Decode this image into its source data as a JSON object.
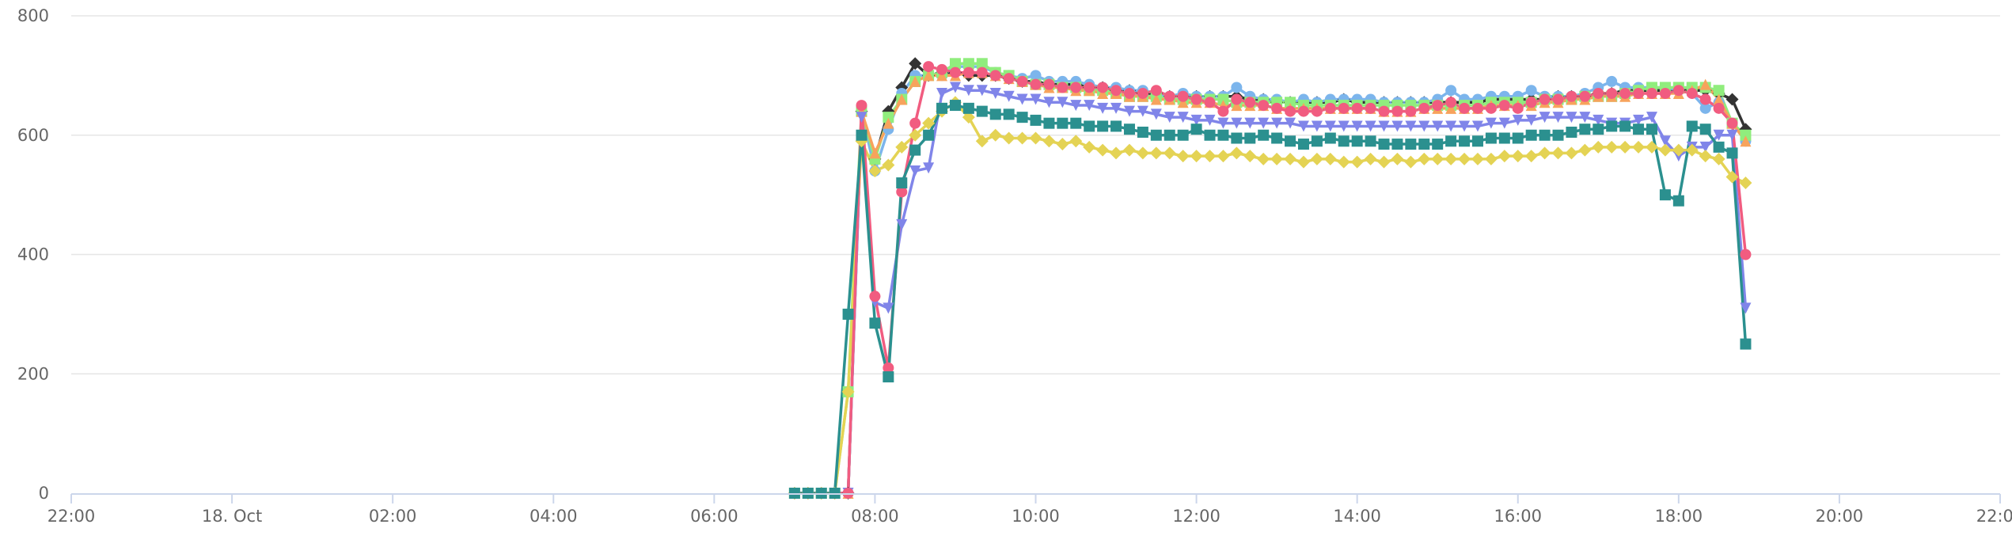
{
  "chart_data": {
    "type": "line",
    "title": "",
    "xlabel": "",
    "ylabel": "",
    "ylim": [
      0,
      800
    ],
    "xlim": [
      "2023-10-17 22:00",
      "2023-10-18 22:00"
    ],
    "grid": true,
    "legend": "none",
    "y_ticks": [
      "0",
      "200",
      "400",
      "600",
      "800"
    ],
    "x_ticks": [
      "22:00",
      "18. Oct",
      "02:00",
      "04:00",
      "06:00",
      "08:00",
      "10:00",
      "12:00",
      "14:00",
      "16:00",
      "18:00",
      "20:00",
      "22:00"
    ],
    "x_tick_times": [
      "2023-10-17 22:00",
      "2023-10-18 00:00",
      "2023-10-18 02:00",
      "2023-10-18 04:00",
      "2023-10-18 06:00",
      "2023-10-18 08:00",
      "2023-10-18 10:00",
      "2023-10-18 12:00",
      "2023-10-18 14:00",
      "2023-10-18 16:00",
      "2023-10-18 18:00",
      "2023-10-18 20:00",
      "2023-10-18 22:00"
    ],
    "x": [
      "2023-10-18 07:00",
      "2023-10-18 07:10",
      "2023-10-18 07:20",
      "2023-10-18 07:30",
      "2023-10-18 07:40",
      "2023-10-18 07:50",
      "2023-10-18 08:00",
      "2023-10-18 08:10",
      "2023-10-18 08:20",
      "2023-10-18 08:30",
      "2023-10-18 08:40",
      "2023-10-18 08:50",
      "2023-10-18 09:00",
      "2023-10-18 09:10",
      "2023-10-18 09:20",
      "2023-10-18 09:30",
      "2023-10-18 09:40",
      "2023-10-18 09:50",
      "2023-10-18 10:00",
      "2023-10-18 10:10",
      "2023-10-18 10:20",
      "2023-10-18 10:30",
      "2023-10-18 10:40",
      "2023-10-18 10:50",
      "2023-10-18 11:00",
      "2023-10-18 11:10",
      "2023-10-18 11:20",
      "2023-10-18 11:30",
      "2023-10-18 11:40",
      "2023-10-18 11:50",
      "2023-10-18 12:00",
      "2023-10-18 12:10",
      "2023-10-18 12:20",
      "2023-10-18 12:30",
      "2023-10-18 12:40",
      "2023-10-18 12:50",
      "2023-10-18 13:00",
      "2023-10-18 13:10",
      "2023-10-18 13:20",
      "2023-10-18 13:30",
      "2023-10-18 13:40",
      "2023-10-18 13:50",
      "2023-10-18 14:00",
      "2023-10-18 14:10",
      "2023-10-18 14:20",
      "2023-10-18 14:30",
      "2023-10-18 14:40",
      "2023-10-18 14:50",
      "2023-10-18 15:00",
      "2023-10-18 15:10",
      "2023-10-18 15:20",
      "2023-10-18 15:30",
      "2023-10-18 15:40",
      "2023-10-18 15:50",
      "2023-10-18 16:00",
      "2023-10-18 16:10",
      "2023-10-18 16:20",
      "2023-10-18 16:30",
      "2023-10-18 16:40",
      "2023-10-18 16:50",
      "2023-10-18 17:00",
      "2023-10-18 17:10",
      "2023-10-18 17:20",
      "2023-10-18 17:30",
      "2023-10-18 17:40",
      "2023-10-18 17:50",
      "2023-10-18 18:00",
      "2023-10-18 18:10",
      "2023-10-18 18:20",
      "2023-10-18 18:30",
      "2023-10-18 18:40",
      "2023-10-18 18:50"
    ],
    "series": [
      {
        "color": "#333333",
        "marker": "diamond",
        "values": [
          0,
          0,
          0,
          0,
          0,
          640,
          560,
          640,
          680,
          720,
          700,
          705,
          705,
          700,
          700,
          700,
          695,
          690,
          690,
          685,
          685,
          685,
          680,
          680,
          675,
          675,
          670,
          670,
          665,
          665,
          665,
          665,
          665,
          665,
          660,
          660,
          655,
          655,
          655,
          655,
          655,
          660,
          655,
          655,
          655,
          655,
          655,
          655,
          655,
          655,
          655,
          655,
          660,
          660,
          660,
          660,
          660,
          665,
          665,
          665,
          670,
          670,
          675,
          675,
          675,
          675,
          675,
          675,
          675,
          670,
          660,
          610
        ]
      },
      {
        "color": "#7cb5ec",
        "marker": "circle",
        "values": [
          0,
          0,
          0,
          0,
          0,
          640,
          540,
          610,
          670,
          700,
          700,
          700,
          715,
          715,
          715,
          705,
          700,
          695,
          700,
          690,
          690,
          690,
          685,
          680,
          680,
          675,
          675,
          670,
          665,
          670,
          665,
          665,
          665,
          680,
          665,
          660,
          660,
          655,
          660,
          655,
          660,
          660,
          660,
          660,
          655,
          655,
          655,
          655,
          660,
          675,
          660,
          660,
          665,
          665,
          665,
          675,
          665,
          665,
          665,
          670,
          680,
          690,
          680,
          680,
          680,
          680,
          675,
          670,
          645,
          655,
          620,
          590
        ]
      },
      {
        "color": "#90ed7d",
        "marker": "square",
        "values": [
          0,
          0,
          0,
          0,
          170,
          640,
          560,
          630,
          660,
          690,
          700,
          705,
          720,
          720,
          720,
          705,
          700,
          690,
          685,
          685,
          680,
          680,
          675,
          675,
          670,
          665,
          665,
          665,
          660,
          660,
          660,
          660,
          660,
          655,
          655,
          655,
          655,
          655,
          650,
          650,
          650,
          650,
          650,
          650,
          650,
          650,
          650,
          650,
          650,
          650,
          650,
          650,
          655,
          655,
          655,
          655,
          660,
          660,
          660,
          665,
          665,
          665,
          670,
          675,
          680,
          680,
          680,
          680,
          680,
          675,
          620,
          600
        ]
      },
      {
        "color": "#f7a35c",
        "marker": "triangle",
        "values": [
          0,
          0,
          0,
          0,
          0,
          640,
          570,
          620,
          660,
          690,
          700,
          700,
          700,
          705,
          705,
          700,
          695,
          690,
          685,
          680,
          680,
          675,
          675,
          670,
          670,
          665,
          665,
          660,
          660,
          655,
          655,
          655,
          650,
          650,
          650,
          650,
          645,
          645,
          645,
          645,
          645,
          645,
          645,
          645,
          640,
          640,
          640,
          645,
          645,
          645,
          645,
          645,
          650,
          650,
          650,
          650,
          655,
          655,
          660,
          660,
          665,
          665,
          665,
          670,
          670,
          670,
          670,
          675,
          685,
          660,
          620,
          590
        ]
      },
      {
        "color": "#8085e9",
        "marker": "triangle-down",
        "values": [
          0,
          0,
          0,
          0,
          0,
          630,
          320,
          310,
          450,
          540,
          545,
          670,
          680,
          675,
          675,
          670,
          665,
          660,
          660,
          655,
          655,
          650,
          650,
          645,
          645,
          640,
          640,
          635,
          630,
          630,
          625,
          625,
          620,
          620,
          620,
          620,
          620,
          620,
          615,
          615,
          615,
          615,
          615,
          615,
          615,
          615,
          615,
          615,
          615,
          615,
          615,
          615,
          620,
          620,
          625,
          625,
          630,
          630,
          630,
          630,
          625,
          620,
          620,
          625,
          630,
          590,
          565,
          580,
          580,
          600,
          600,
          310
        ]
      },
      {
        "color": "#e4d354",
        "marker": "diamond",
        "values": [
          0,
          0,
          0,
          0,
          170,
          590,
          540,
          550,
          580,
          600,
          620,
          640,
          655,
          630,
          590,
          600,
          595,
          595,
          595,
          590,
          585,
          590,
          580,
          575,
          570,
          575,
          570,
          570,
          570,
          565,
          565,
          565,
          565,
          570,
          565,
          560,
          560,
          560,
          555,
          560,
          560,
          555,
          555,
          560,
          555,
          560,
          555,
          560,
          560,
          560,
          560,
          560,
          560,
          565,
          565,
          565,
          570,
          570,
          570,
          575,
          580,
          580,
          580,
          580,
          580,
          575,
          575,
          575,
          565,
          560,
          530,
          520
        ]
      },
      {
        "color": "#f15c80",
        "marker": "circle",
        "values": [
          0,
          0,
          0,
          0,
          0,
          650,
          330,
          210,
          505,
          620,
          715,
          710,
          705,
          705,
          705,
          700,
          695,
          690,
          685,
          685,
          680,
          680,
          680,
          680,
          675,
          670,
          670,
          675,
          665,
          665,
          660,
          655,
          640,
          660,
          655,
          650,
          645,
          640,
          640,
          640,
          645,
          645,
          645,
          645,
          640,
          640,
          640,
          645,
          650,
          655,
          645,
          645,
          645,
          650,
          645,
          655,
          660,
          660,
          665,
          665,
          670,
          670,
          670,
          670,
          670,
          670,
          675,
          670,
          660,
          645,
          620,
          400
        ]
      },
      {
        "color": "#2b908f",
        "marker": "square",
        "values": [
          0,
          0,
          0,
          0,
          300,
          600,
          285,
          195,
          520,
          575,
          600,
          645,
          650,
          645,
          640,
          635,
          635,
          630,
          625,
          620,
          620,
          620,
          615,
          615,
          615,
          610,
          605,
          600,
          600,
          600,
          610,
          600,
          600,
          595,
          595,
          600,
          595,
          590,
          585,
          590,
          595,
          590,
          590,
          590,
          585,
          585,
          585,
          585,
          585,
          590,
          590,
          590,
          595,
          595,
          595,
          600,
          600,
          600,
          605,
          610,
          610,
          615,
          615,
          610,
          610,
          500,
          490,
          615,
          610,
          580,
          570,
          250
        ]
      }
    ]
  }
}
